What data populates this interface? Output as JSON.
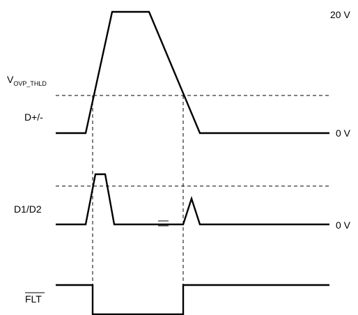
{
  "labels": {
    "voltage_top": "20 V",
    "vovp_main": "V",
    "vovp_sub": "OVP_THLD",
    "dplusminus": "D+/-",
    "zero_v_dpm": "0 V",
    "d1d2": "D1/D2",
    "zero_v_d1d2": "0 V",
    "flt": "FLT"
  },
  "colors": {
    "ink": "#000000",
    "background": "#ffffff"
  }
}
